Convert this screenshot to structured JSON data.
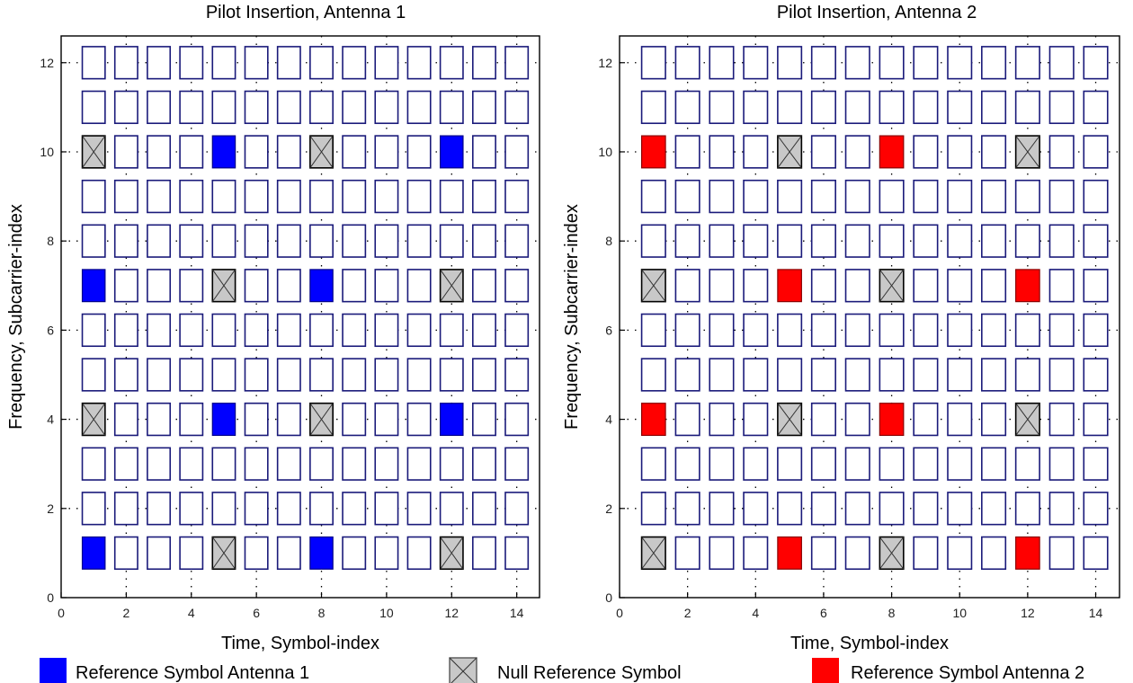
{
  "chart_data": [
    {
      "type": "scatter",
      "title": "Pilot Insertion, Antenna 1",
      "xlabel": "Time, Symbol-index",
      "ylabel": "Frequency, Subcarrier-index",
      "xlim": [
        0,
        14.7
      ],
      "ylim": [
        0,
        12.6
      ],
      "xticks": [
        "0",
        "2",
        "4",
        "6",
        "8",
        "10",
        "12",
        "14"
      ],
      "yticks": [
        "0",
        "2",
        "4",
        "6",
        "8",
        "10",
        "12"
      ],
      "grid": "dotted",
      "symbols": [
        1,
        2,
        3,
        4,
        5,
        6,
        7,
        8,
        9,
        10,
        11,
        12,
        13,
        14
      ],
      "subcarriers": [
        1,
        2,
        3,
        4,
        5,
        6,
        7,
        8,
        9,
        10,
        11,
        12
      ],
      "reference_symbols": [
        [
          1,
          1
        ],
        [
          8,
          1
        ],
        [
          5,
          4
        ],
        [
          12,
          4
        ],
        [
          1,
          7
        ],
        [
          8,
          7
        ],
        [
          5,
          10
        ],
        [
          12,
          10
        ]
      ],
      "null_symbols": [
        [
          5,
          1
        ],
        [
          12,
          1
        ],
        [
          1,
          4
        ],
        [
          8,
          4
        ],
        [
          5,
          7
        ],
        [
          12,
          7
        ],
        [
          1,
          10
        ],
        [
          8,
          10
        ]
      ],
      "reference_color": "#0000ff"
    },
    {
      "type": "scatter",
      "title": "Pilot Insertion, Antenna 2",
      "xlabel": "Time, Symbol-index",
      "ylabel": "Frequency, Subcarrier-index",
      "xlim": [
        0,
        14.7
      ],
      "ylim": [
        0,
        12.6
      ],
      "xticks": [
        "0",
        "2",
        "4",
        "6",
        "8",
        "10",
        "12",
        "14"
      ],
      "yticks": [
        "0",
        "2",
        "4",
        "6",
        "8",
        "10",
        "12"
      ],
      "grid": "dotted",
      "symbols": [
        1,
        2,
        3,
        4,
        5,
        6,
        7,
        8,
        9,
        10,
        11,
        12,
        13,
        14
      ],
      "subcarriers": [
        1,
        2,
        3,
        4,
        5,
        6,
        7,
        8,
        9,
        10,
        11,
        12
      ],
      "reference_symbols": [
        [
          5,
          1
        ],
        [
          12,
          1
        ],
        [
          1,
          4
        ],
        [
          8,
          4
        ],
        [
          5,
          7
        ],
        [
          12,
          7
        ],
        [
          1,
          10
        ],
        [
          8,
          10
        ]
      ],
      "null_symbols": [
        [
          1,
          1
        ],
        [
          8,
          1
        ],
        [
          5,
          4
        ],
        [
          12,
          4
        ],
        [
          1,
          7
        ],
        [
          8,
          7
        ],
        [
          5,
          10
        ],
        [
          12,
          10
        ]
      ],
      "reference_color": "#ff0000"
    }
  ],
  "legend": {
    "items": [
      {
        "label": "Reference Symbol Antenna 1",
        "kind": "filled",
        "color": "#0000ff"
      },
      {
        "label": "Null Reference Symbol",
        "kind": "null",
        "color": "#c8c8c8"
      },
      {
        "label": "Reference Symbol Antenna 2",
        "kind": "filled",
        "color": "#ff0000"
      }
    ]
  },
  "colors": {
    "cell_border": "#1a1a7a",
    "null_fill": "#c8c8c8",
    "null_border": "#000000",
    "axis": "#000000"
  }
}
